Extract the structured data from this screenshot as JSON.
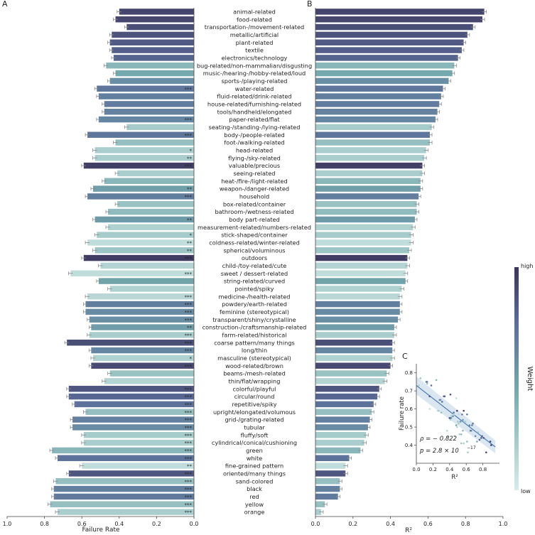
{
  "chart_data": [
    {
      "panel": "A",
      "type": "bar",
      "orientation": "horizontal",
      "xlabel": "Failure Rate",
      "xlim": [
        1.0,
        0.0
      ],
      "xticks": [
        "1.0",
        "0.8",
        "0.6",
        "0.4",
        "0.2",
        "0.0"
      ],
      "categories": [
        "animal-related",
        "food-related",
        "transportation-/movement-related",
        "metallic/artificial",
        "plant-related",
        "textile",
        "electronics/technology",
        "bug-related/non-mammalian/disgusting",
        "music-/hearing-/hobby-related/loud",
        "sports-/playing-related",
        "water-related",
        "fluid-related/drink-related",
        "house-related/furnishing-related",
        "tools/handheld/elongated",
        "paper-related/flat",
        "seating-/standing-/lying-related",
        "body-/people-related",
        "foot-/walking-related",
        "head-related",
        "flying-/sky-related",
        "valuable/precious",
        "seeing-related",
        "heat-/fire-/light-related",
        "weapon-/danger-related",
        "household",
        "box-related/container",
        "bathroom-/wetness-related",
        "body part-related",
        "measurement-related/numbers-related",
        "stick-shaped/container",
        "coldness-related/winter-related",
        "spherical/voluminous",
        "outdoors",
        "child-/toy-related/cute",
        "sweet / dessert-related",
        "string-related/curved",
        "pointed/spiky",
        "medicine-/health-related",
        "powdery/earth-related",
        "feminine (stereotypical)",
        "transparent/shiny/crystalline",
        "construction-/craftsmanship-related",
        "farm-related/historical",
        "coarse pattern/many things",
        "long/thin",
        "masculine (stereotypical)",
        "wood-related/brown",
        "beams-/mesh-related",
        "thin/flat/wrapping",
        "colorful/playful",
        "circular/round",
        "repetitive/spiky",
        "upright/elongated/volumous",
        "grid-/grating-related",
        "tubular",
        "fluffy/soft",
        "cylindrical/conical/cushioning",
        "green",
        "white",
        "fine-grained pattern",
        "oriented/many things",
        "sand-colored",
        "black",
        "red",
        "yellow",
        "orange"
      ],
      "values": [
        0.4,
        0.42,
        0.36,
        0.44,
        0.45,
        0.44,
        0.43,
        0.47,
        0.42,
        0.45,
        0.52,
        0.51,
        0.48,
        0.48,
        0.51,
        0.36,
        0.57,
        0.42,
        0.53,
        0.53,
        0.59,
        0.41,
        0.48,
        0.54,
        0.57,
        0.41,
        0.46,
        0.53,
        0.46,
        0.52,
        0.57,
        0.53,
        0.59,
        0.5,
        0.66,
        0.51,
        0.45,
        0.57,
        0.58,
        0.58,
        0.56,
        0.55,
        0.56,
        0.68,
        0.55,
        0.54,
        0.55,
        0.45,
        0.48,
        0.67,
        0.67,
        0.64,
        0.58,
        0.65,
        0.65,
        0.59,
        0.59,
        0.76,
        0.73,
        0.6,
        0.67,
        0.74,
        0.75,
        0.75,
        0.77,
        0.73
      ],
      "weights": [
        0.93,
        0.92,
        0.88,
        0.86,
        0.83,
        0.81,
        0.79,
        0.35,
        0.45,
        0.58,
        0.7,
        0.66,
        0.67,
        0.64,
        0.62,
        0.22,
        0.7,
        0.3,
        0.2,
        0.2,
        0.95,
        0.2,
        0.35,
        0.5,
        0.66,
        0.28,
        0.32,
        0.52,
        0.18,
        0.22,
        0.1,
        0.26,
        0.97,
        0.16,
        0.1,
        0.48,
        0.18,
        0.14,
        0.66,
        0.6,
        0.58,
        0.51,
        0.2,
        0.88,
        0.62,
        0.18,
        0.9,
        0.28,
        0.16,
        0.85,
        0.78,
        0.72,
        0.3,
        0.65,
        0.6,
        0.22,
        0.2,
        0.36,
        0.72,
        0.1,
        0.85,
        0.3,
        0.65,
        0.68,
        0.3,
        0.2
      ],
      "significance": [
        "",
        "",
        "",
        "",
        "",
        "",
        "",
        "",
        "",
        "",
        "***",
        "",
        "",
        "",
        "***",
        "",
        "***",
        "",
        "*",
        "**",
        "***",
        "",
        "",
        "**",
        "***",
        "",
        "",
        "**",
        "",
        "*",
        "**",
        "**",
        "***",
        "",
        "***",
        "",
        "",
        "***",
        "***",
        "***",
        "***",
        "**",
        "***",
        "***",
        "***",
        "*",
        "***",
        "",
        "",
        "***",
        "***",
        "***",
        "***",
        "***",
        "***",
        "***",
        "***",
        "***",
        "***",
        "**",
        "***",
        "***",
        "***",
        "***",
        "***",
        "***"
      ]
    },
    {
      "panel": "B",
      "type": "bar",
      "orientation": "horizontal",
      "xlabel": "R²",
      "xlim": [
        0.0,
        1.0
      ],
      "xticks": [
        "0.0",
        "0.2",
        "0.4",
        "0.6",
        "0.8",
        "1.0"
      ],
      "values": [
        0.9,
        0.89,
        0.84,
        0.81,
        0.79,
        0.78,
        0.76,
        0.74,
        0.73,
        0.71,
        0.68,
        0.67,
        0.66,
        0.65,
        0.64,
        0.62,
        0.61,
        0.61,
        0.59,
        0.58,
        0.57,
        0.57,
        0.56,
        0.56,
        0.55,
        0.54,
        0.54,
        0.53,
        0.52,
        0.51,
        0.51,
        0.5,
        0.49,
        0.49,
        0.48,
        0.48,
        0.46,
        0.45,
        0.45,
        0.45,
        0.44,
        0.42,
        0.42,
        0.41,
        0.41,
        0.41,
        0.4,
        0.38,
        0.37,
        0.34,
        0.33,
        0.31,
        0.3,
        0.29,
        0.28,
        0.27,
        0.26,
        0.24,
        0.18,
        0.16,
        0.16,
        0.13,
        0.13,
        0.12,
        0.05,
        0.03
      ]
    },
    {
      "panel": "C",
      "type": "scatter",
      "xlabel": "R²",
      "ylabel": "Failure rate",
      "xlim": [
        0.0,
        1.0
      ],
      "ylim": [
        0.3,
        0.85
      ],
      "xticks": [
        "0.0",
        "0.2",
        "0.4",
        "0.6",
        "0.8"
      ],
      "yticks": [
        "0.4",
        "0.5",
        "0.6",
        "0.7",
        "0.8"
      ],
      "fit": {
        "x0": 0.0,
        "y0": 0.73,
        "x1": 0.95,
        "y1": 0.39
      },
      "annotation_rho": "ρ = − 0.822",
      "annotation_p": "p = 2.8 × 10",
      "annotation_p_exp": "−17"
    }
  ],
  "colorbar": {
    "title": "Weight",
    "high_label": "high",
    "low_label": "low"
  },
  "panel_labels": {
    "a": "A",
    "b": "B",
    "c": "C"
  }
}
